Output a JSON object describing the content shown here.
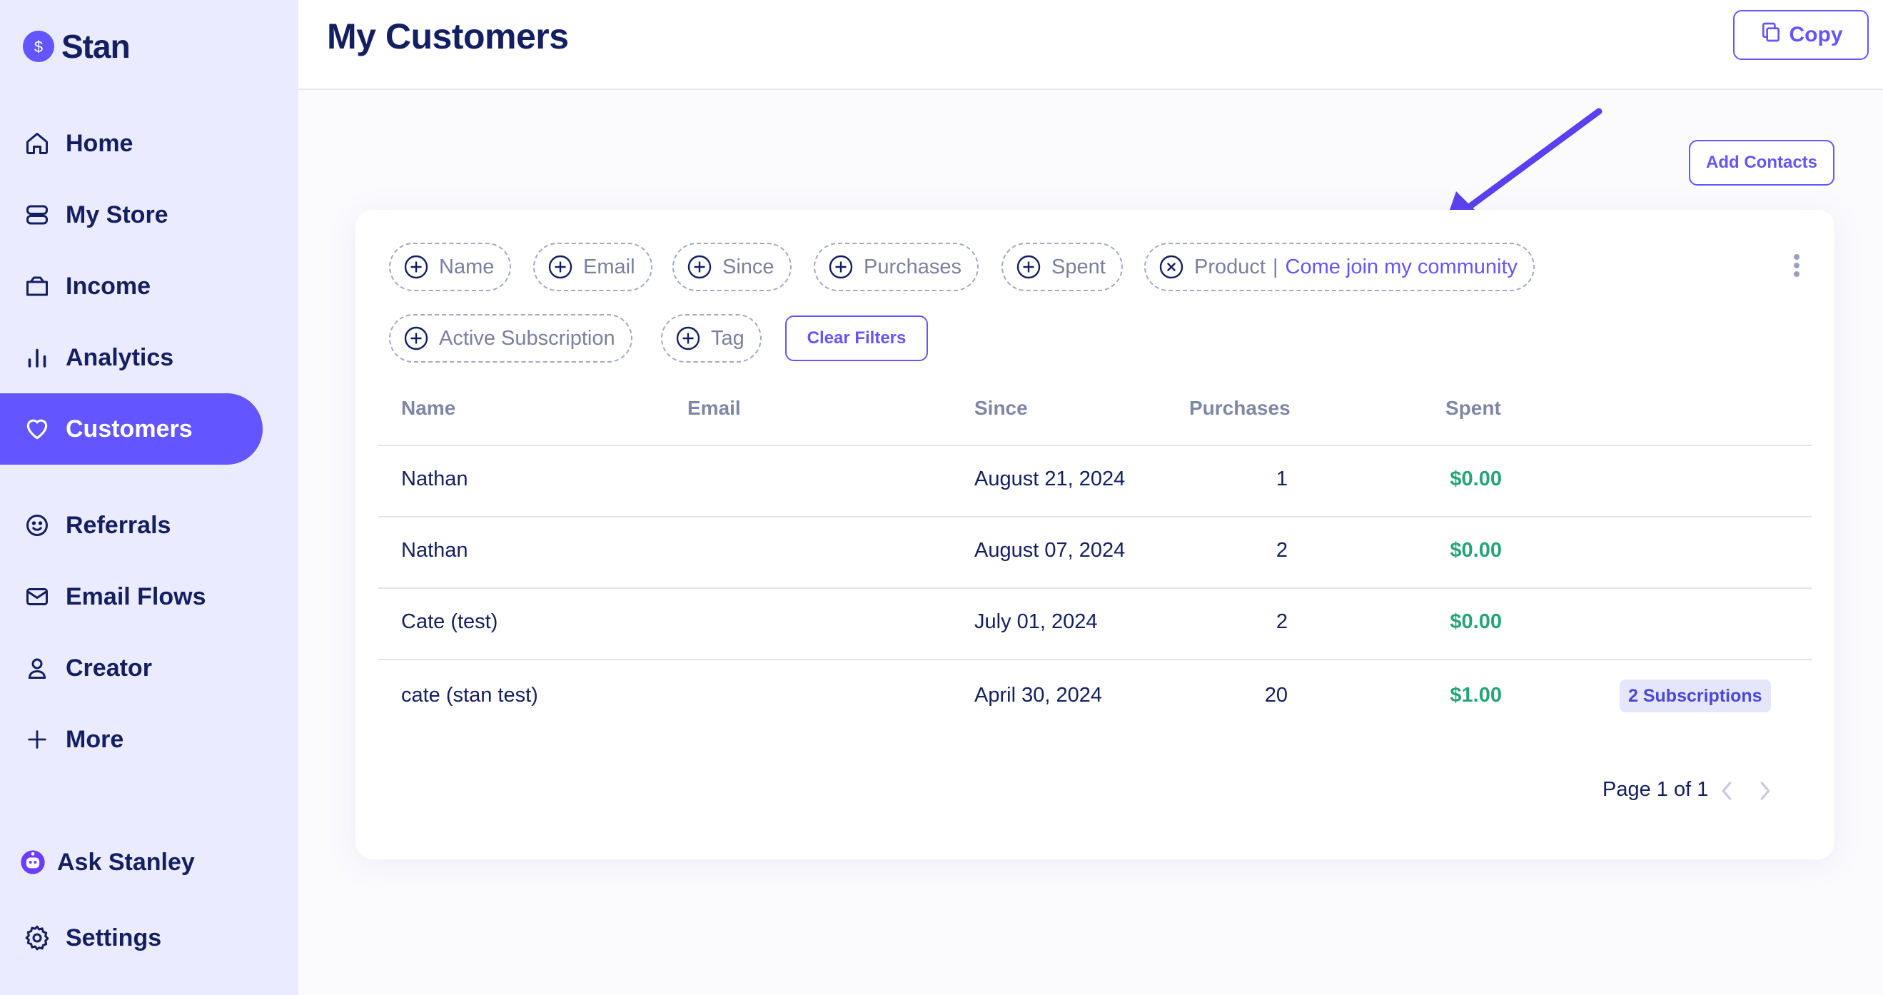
{
  "app": {
    "name": "Stan"
  },
  "sidebar": {
    "items": [
      {
        "label": "Home",
        "icon": "home-icon"
      },
      {
        "label": "My Store",
        "icon": "store-icon"
      },
      {
        "label": "Income",
        "icon": "wallet-icon"
      },
      {
        "label": "Analytics",
        "icon": "analytics-icon"
      },
      {
        "label": "Customers",
        "icon": "heart-icon",
        "active": true
      },
      {
        "label": "Referrals",
        "icon": "smiley-icon"
      },
      {
        "label": "Email Flows",
        "icon": "mail-icon"
      },
      {
        "label": "Creator",
        "icon": "user-icon"
      },
      {
        "label": "More",
        "icon": "plus-icon"
      },
      {
        "label": "Ask Stanley",
        "icon": "stanley-bot-icon"
      },
      {
        "label": "Settings",
        "icon": "gear-icon"
      }
    ]
  },
  "header": {
    "title": "My Customers",
    "copy_label": "Copy"
  },
  "actions": {
    "add_contacts_label": "Add Contacts",
    "clear_filters_label": "Clear Filters"
  },
  "filters": [
    {
      "label": "Name",
      "state": "add"
    },
    {
      "label": "Email",
      "state": "add"
    },
    {
      "label": "Since",
      "state": "add"
    },
    {
      "label": "Purchases",
      "state": "add"
    },
    {
      "label": "Spent",
      "state": "add"
    },
    {
      "label": "Product",
      "state": "active",
      "value": "Come join my community"
    },
    {
      "label": "Active Subscription",
      "state": "add"
    },
    {
      "label": "Tag",
      "state": "add"
    }
  ],
  "table": {
    "columns": [
      "Name",
      "Email",
      "Since",
      "Purchases",
      "Spent"
    ],
    "rows": [
      {
        "name": "Nathan",
        "email": "",
        "since": "August 21, 2024",
        "purchases": "1",
        "spent": "$0.00",
        "badge": ""
      },
      {
        "name": "Nathan",
        "email": "",
        "since": "August 07, 2024",
        "purchases": "2",
        "spent": "$0.00",
        "badge": ""
      },
      {
        "name": "Cate (test)",
        "email": "",
        "since": "July 01, 2024",
        "purchases": "2",
        "spent": "$0.00",
        "badge": ""
      },
      {
        "name": "cate (stan test)",
        "email": "",
        "since": "April 30, 2024",
        "purchases": "20",
        "spent": "$1.00",
        "badge": "2 Subscriptions"
      }
    ]
  },
  "pagination": {
    "label": "Page 1 of 1"
  },
  "colors": {
    "accent": "#6355ff",
    "sidebar_bg": "#ebebff",
    "text": "#131f60",
    "money": "#25a575",
    "annotation_arrow": "#5b3ff0"
  }
}
